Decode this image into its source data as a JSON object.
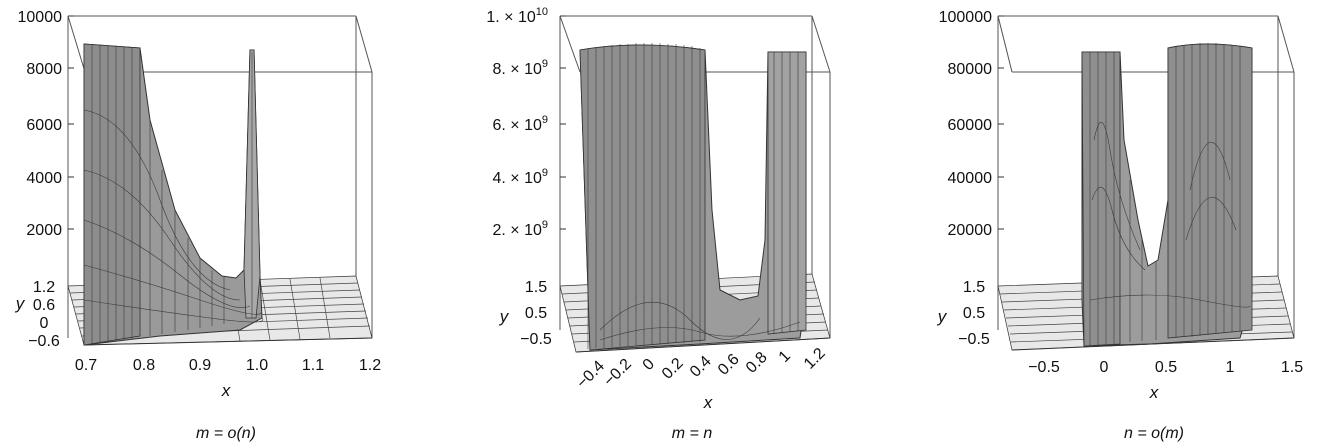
{
  "chart_data": [
    {
      "type": "surface",
      "caption": "m = o(n)",
      "xlabel": "x",
      "ylabel": "y",
      "z_ticks": [
        "10000",
        "8000",
        "6000",
        "4000",
        "2000"
      ],
      "z_tick_values": [
        10000,
        8000,
        6000,
        4000,
        2000
      ],
      "zlim": [
        0,
        10000
      ],
      "y_ticks": [
        "1.2",
        "0.6",
        "0",
        "−0.6"
      ],
      "x_ticks": [
        "0.7",
        "0.8",
        "0.9",
        "1.0",
        "1.1",
        "1.2"
      ],
      "xlim": [
        0.69,
        1.2
      ],
      "ylim": [
        -0.6,
        1.2
      ],
      "clip_level": 8600,
      "peaks": [
        {
          "x": 0.69,
          "width": 0.09,
          "height": 8600,
          "shape": "plateau"
        },
        {
          "x": 0.985,
          "width": 0.012,
          "height": 8600,
          "shape": "spike"
        }
      ],
      "curve": [
        [
          0.78,
          8600
        ],
        [
          0.82,
          5200
        ],
        [
          0.86,
          2600
        ],
        [
          0.9,
          1100
        ],
        [
          0.93,
          400
        ],
        [
          0.96,
          900
        ],
        [
          0.98,
          3500
        ]
      ]
    },
    {
      "type": "surface",
      "caption": "m = n",
      "xlabel": "x",
      "ylabel": "y",
      "z_ticks": [
        "1. × 10",
        "8. × 10",
        "6. × 10",
        "4. × 10",
        "2. × 10"
      ],
      "z_tick_exp": "9",
      "z_top_exp": "10",
      "z_tick_values": [
        10000000000,
        8000000000,
        6000000000,
        4000000000,
        2000000000
      ],
      "zlim": [
        0,
        10000000000
      ],
      "y_ticks": [
        "1.5",
        "0.5",
        "−0.5"
      ],
      "x_ticks": [
        "−0.4",
        "−0.2",
        "0",
        "0.2",
        "0.4",
        "0.6",
        "0.8",
        "1",
        "1.2"
      ],
      "xlim": [
        -0.5,
        1.3
      ],
      "ylim": [
        -0.5,
        1.5
      ],
      "clip_level": 8600000000,
      "peaks": [
        {
          "x_from": -0.45,
          "x_to": 0.6,
          "height": 8600000000,
          "shape": "plateau"
        },
        {
          "x_from": 0.8,
          "x_to": 1.05,
          "height": 8600000000,
          "shape": "plateau"
        }
      ]
    },
    {
      "type": "surface",
      "caption": "n = o(m)",
      "xlabel": "x",
      "ylabel": "y",
      "z_ticks": [
        "100000",
        "80000",
        "60000",
        "40000",
        "20000"
      ],
      "z_tick_values": [
        100000,
        80000,
        60000,
        40000,
        20000
      ],
      "zlim": [
        0,
        100000
      ],
      "y_ticks": [
        "1.5",
        "0.5",
        "−0.5"
      ],
      "x_ticks": [
        "−0.5",
        "0",
        "0.5",
        "1",
        "1.5"
      ],
      "xlim": [
        -0.8,
        1.5
      ],
      "ylim": [
        -0.5,
        1.5
      ],
      "clip_level": 86000,
      "peaks": [
        {
          "x_from": -0.1,
          "x_to": 0.15,
          "height": 86000,
          "shape": "plateau"
        },
        {
          "x_from": 0.55,
          "x_to": 1.15,
          "height": 86000,
          "shape": "plateau"
        }
      ],
      "curve": [
        [
          0.15,
          60000
        ],
        [
          0.3,
          25000
        ],
        [
          0.4,
          16000
        ],
        [
          0.5,
          35000
        ],
        [
          0.55,
          60000
        ]
      ]
    }
  ]
}
